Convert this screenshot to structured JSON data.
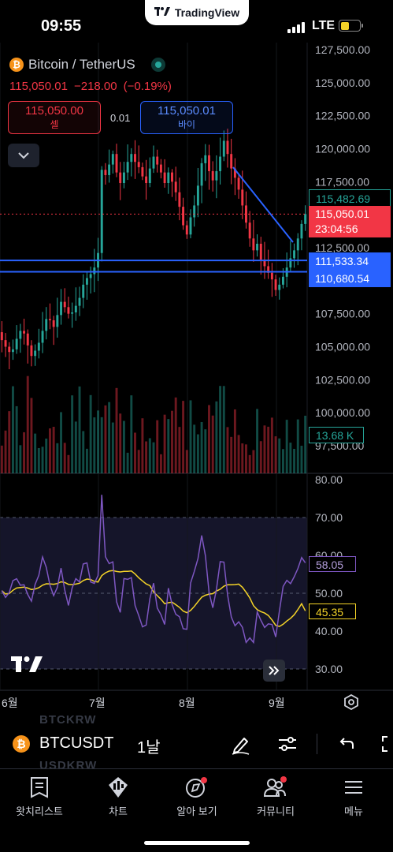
{
  "status_bar": {
    "time": "09:55",
    "network": "LTE",
    "brand": "TradingView"
  },
  "symbol": {
    "title": "Bitcoin / TetherUS",
    "last": "115,050.01",
    "change": "−218.00",
    "change_pct": "(−0.19%)",
    "sell_price": "115,050.00",
    "sell_label": "셀",
    "buy_price": "115,050.01",
    "buy_label": "바이",
    "spread": "0.01"
  },
  "price_tags": {
    "high_line": "115,482.69",
    "last": "115,050.01",
    "countdown": "23:04:56",
    "line_upper": "111,533.34",
    "line_lower": "110,680.54",
    "volume": "13.68 K",
    "rsi": "58.05",
    "rsi_ma": "45.35"
  },
  "colors": {
    "up": "#26a69a",
    "down": "#f23645",
    "line": "#2962ff",
    "rsi": "#7e57c2",
    "rsi_ma": "#f5d428"
  },
  "chart_data": [
    {
      "type": "candlestick",
      "price_axis": [
        "127,500.00",
        "125,000.00",
        "122,500.00",
        "120,000.00",
        "117,500.00",
        "112,500.00",
        "107,500.00",
        "105,000.00",
        "102,500.00",
        "100,000.00",
        "97,500.00"
      ],
      "time_axis": [
        "6월",
        "7월",
        "8월",
        "9월"
      ],
      "ylim": [
        97500,
        127500
      ],
      "horizontal_lines": [
        111533.34,
        110680.54
      ],
      "approx_closes": [
        105500,
        105000,
        104600,
        104800,
        105600,
        106200,
        106000,
        105100,
        104300,
        104700,
        105300,
        106200,
        107100,
        107000,
        106500,
        107400,
        108400,
        108000,
        107500,
        107600,
        108100,
        108700,
        109700,
        110200,
        110500,
        111000,
        112100,
        118400,
        118000,
        118800,
        119600,
        118200,
        117400,
        118200,
        119000,
        119600,
        119000,
        118600,
        117900,
        117400,
        118500,
        119400,
        118800,
        118200,
        117400,
        118200,
        117500,
        116700,
        115600,
        114200,
        113500,
        114800,
        115700,
        117200,
        118900,
        119500,
        118300,
        117600,
        118300,
        119400,
        120600,
        119600,
        118500,
        117800,
        116900,
        115700,
        114400,
        113200,
        112300,
        112800,
        111600,
        111100,
        110600,
        110100,
        109300,
        109700,
        110300,
        111000,
        111700,
        112300,
        113200,
        114300,
        115050
      ]
    },
    {
      "type": "bar",
      "name": "volume",
      "last_label": "13.68 K"
    },
    {
      "type": "line",
      "name": "RSI",
      "axis": [
        "80.00",
        "70.00",
        "60.00",
        "50.00",
        "40.00",
        "30.00"
      ],
      "ylim": [
        25,
        82
      ],
      "bands": [
        30,
        50,
        70
      ],
      "last": 58.05,
      "ma_last": 45.35
    }
  ],
  "toolbar": {
    "symbol": "BTCUSDT",
    "interval": "1날",
    "ghost_symbols": [
      "BTCKRW",
      "USDKRW"
    ]
  },
  "nav": [
    {
      "label": "왓치리스트"
    },
    {
      "label": "차트"
    },
    {
      "label": "알아 보기"
    },
    {
      "label": "커뮤니티"
    },
    {
      "label": "메뉴"
    }
  ]
}
